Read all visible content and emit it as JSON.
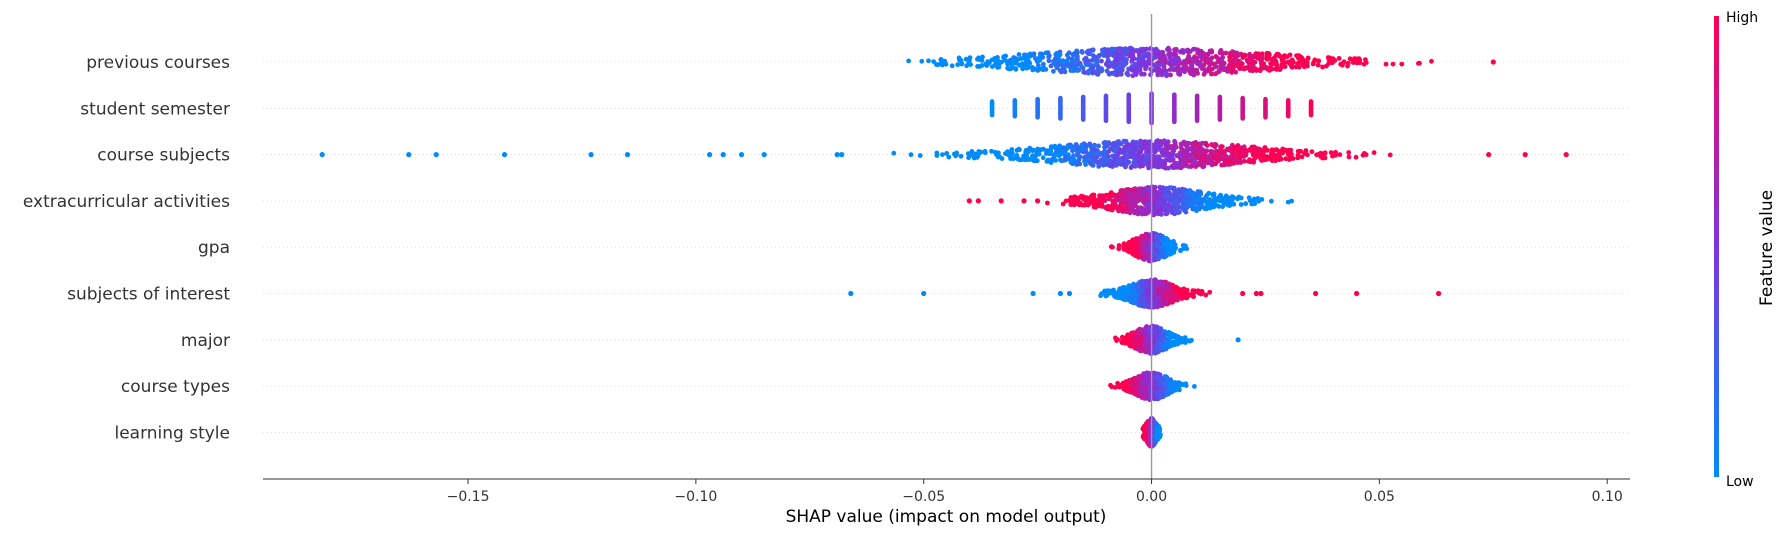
{
  "chart_data": {
    "type": "scatter",
    "subtype": "shap-beeswarm-summary",
    "title": "",
    "xlabel": "SHAP value (impact on model output)",
    "xlim": [
      -0.195,
      0.105
    ],
    "xticks": [
      -0.15,
      -0.1,
      -0.05,
      0.0,
      0.05,
      0.1
    ],
    "xtick_labels": [
      "−0.15",
      "−0.10",
      "−0.05",
      "0.00",
      "0.05",
      "0.10"
    ],
    "grid": false,
    "features": [
      {
        "name": "previous courses",
        "kind": "continuous",
        "range": [
          -0.061,
          0.065
        ],
        "outliers": [
          0.075
        ],
        "outlier_values": [
          1.0
        ],
        "center": 0.0,
        "spread": 0.022,
        "value_slope": 18,
        "n": 900
      },
      {
        "name": "student semester",
        "kind": "discrete",
        "x_values": [
          -0.035,
          -0.03,
          -0.025,
          -0.02,
          -0.015,
          -0.01,
          -0.005,
          0.0,
          0.005,
          0.01,
          0.015,
          0.02,
          0.025,
          0.03,
          0.035
        ],
        "feature_values": [
          0.0,
          0.07,
          0.14,
          0.21,
          0.29,
          0.36,
          0.43,
          0.5,
          0.57,
          0.64,
          0.71,
          0.79,
          0.86,
          0.93,
          1.0
        ]
      },
      {
        "name": "course subjects",
        "kind": "continuous",
        "range": [
          -0.061,
          0.063
        ],
        "outliers": [
          -0.182,
          -0.163,
          -0.157,
          -0.142,
          -0.123,
          -0.115,
          -0.097,
          -0.094,
          -0.09,
          -0.085,
          -0.069,
          -0.068,
          0.074,
          0.082,
          0.091
        ],
        "outlier_values": [
          0.0,
          0.0,
          0.0,
          0.0,
          0.0,
          0.0,
          0.0,
          0.0,
          0.0,
          0.0,
          0.0,
          0.0,
          1.0,
          1.0,
          1.0
        ],
        "center": 0.0,
        "spread": 0.018,
        "value_slope": 22,
        "n": 950
      },
      {
        "name": "extracurricular activities",
        "kind": "continuous",
        "range": [
          -0.023,
          0.033
        ],
        "outliers": [
          -0.04,
          -0.038,
          -0.033,
          -0.028,
          -0.025
        ],
        "outlier_values": [
          1.0,
          1.0,
          1.0,
          1.0,
          1.0
        ],
        "center": 0.001,
        "spread": 0.009,
        "value_slope": -45,
        "n": 650
      },
      {
        "name": "gpa",
        "kind": "continuous",
        "range": [
          -0.009,
          0.009
        ],
        "outliers": [],
        "center": 0.0,
        "spread": 0.003,
        "value_slope": -160,
        "n": 400
      },
      {
        "name": "subjects of interest",
        "kind": "continuous",
        "range": [
          -0.013,
          0.016
        ],
        "outliers": [
          -0.066,
          -0.05,
          -0.026,
          -0.02,
          -0.018,
          0.02,
          0.023,
          0.024,
          0.036,
          0.045,
          0.063
        ],
        "outlier_values": [
          0.0,
          0.0,
          0.0,
          0.0,
          0.0,
          1.0,
          1.0,
          1.0,
          1.0,
          1.0,
          1.0
        ],
        "center": 0.0,
        "spread": 0.004,
        "value_slope": 90,
        "n": 600
      },
      {
        "name": "major",
        "kind": "continuous",
        "range": [
          -0.015,
          0.009
        ],
        "outliers": [
          0.019
        ],
        "outlier_values": [
          0.0
        ],
        "center": 0.0,
        "spread": 0.003,
        "value_slope": -120,
        "n": 400
      },
      {
        "name": "course types",
        "kind": "continuous",
        "range": [
          -0.011,
          0.016
        ],
        "outliers": [],
        "center": 0.0,
        "spread": 0.003,
        "value_slope": -100,
        "n": 450
      },
      {
        "name": "learning style",
        "kind": "continuous",
        "range": [
          -0.002,
          0.002
        ],
        "outliers": [],
        "center": 0.0,
        "spread": 0.001,
        "value_slope": -500,
        "n": 300
      }
    ],
    "colorbar": {
      "label": "Feature value",
      "high_label": "High",
      "low_label": "Low",
      "low_color": "#008bfb",
      "mid_color": "#7f34e0",
      "high_color": "#ff0051"
    },
    "zero_line_color": "#999999",
    "row_line_color": "#cccccc"
  }
}
